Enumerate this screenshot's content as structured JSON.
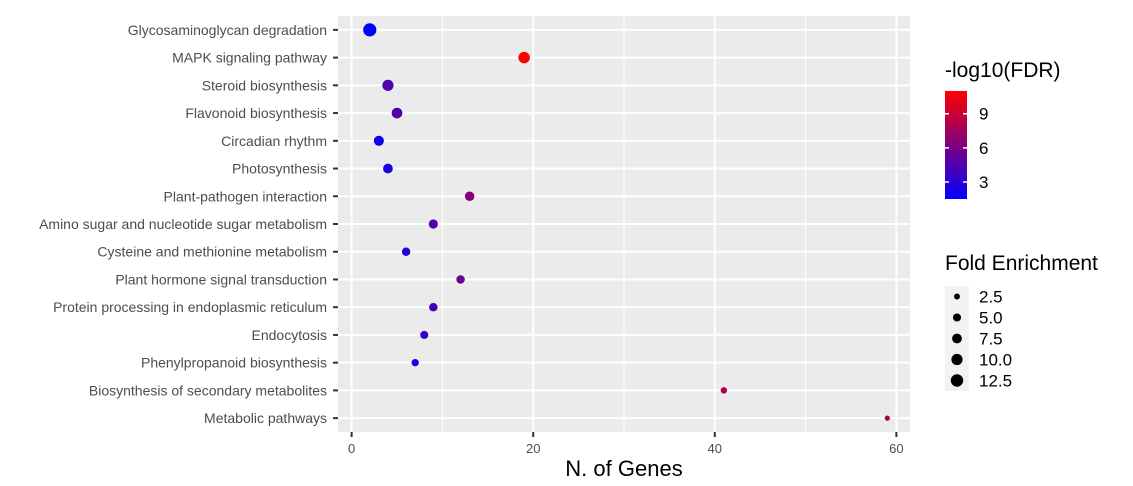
{
  "chart_data": {
    "type": "scatter",
    "title": "",
    "xlabel": "N. of Genes",
    "ylabel": "",
    "xlim": [
      -1.5,
      61.5
    ],
    "xticks": [
      0,
      20,
      40,
      60
    ],
    "grid": true,
    "categories": [
      "Glycosaminoglycan degradation",
      "MAPK signaling pathway",
      "Steroid biosynthesis",
      "Flavonoid biosynthesis",
      "Circadian rhythm",
      "Photosynthesis",
      "Plant-pathogen interaction",
      "Amino sugar and nucleotide sugar metabolism",
      "Cysteine and methionine metabolism",
      "Plant hormone signal transduction",
      "Protein processing in endoplasmic reticulum",
      "Endocytosis",
      "Phenylpropanoid biosynthesis",
      "Biosynthesis of secondary metabolites",
      "Metabolic pathways"
    ],
    "points": [
      {
        "pathway": "Glycosaminoglycan degradation",
        "genes": 2,
        "neg_log10_fdr": 1.5,
        "fold_enrichment": 14
      },
      {
        "pathway": "MAPK signaling pathway",
        "genes": 19,
        "neg_log10_fdr": 11,
        "fold_enrichment": 10.5
      },
      {
        "pathway": "Steroid biosynthesis",
        "genes": 4,
        "neg_log10_fdr": 4.5,
        "fold_enrichment": 10
      },
      {
        "pathway": "Flavonoid biosynthesis",
        "genes": 5,
        "neg_log10_fdr": 4.5,
        "fold_enrichment": 9
      },
      {
        "pathway": "Circadian rhythm",
        "genes": 3,
        "neg_log10_fdr": 2,
        "fold_enrichment": 8
      },
      {
        "pathway": "Photosynthesis",
        "genes": 4,
        "neg_log10_fdr": 2.5,
        "fold_enrichment": 7.5
      },
      {
        "pathway": "Plant-pathogen interaction",
        "genes": 13,
        "neg_log10_fdr": 6.5,
        "fold_enrichment": 7
      },
      {
        "pathway": "Amino sugar and nucleotide sugar metabolism",
        "genes": 9,
        "neg_log10_fdr": 4.5,
        "fold_enrichment": 6.5
      },
      {
        "pathway": "Cysteine and methionine metabolism",
        "genes": 6,
        "neg_log10_fdr": 3,
        "fold_enrichment": 5.5
      },
      {
        "pathway": "Plant hormone signal transduction",
        "genes": 12,
        "neg_log10_fdr": 5.5,
        "fold_enrichment": 5.5
      },
      {
        "pathway": "Protein processing in endoplasmic reticulum",
        "genes": 9,
        "neg_log10_fdr": 4,
        "fold_enrichment": 5.5
      },
      {
        "pathway": "Endocytosis",
        "genes": 8,
        "neg_log10_fdr": 3.5,
        "fold_enrichment": 5
      },
      {
        "pathway": "Phenylpropanoid biosynthesis",
        "genes": 7,
        "neg_log10_fdr": 2.5,
        "fold_enrichment": 4
      },
      {
        "pathway": "Biosynthesis of secondary metabolites",
        "genes": 41,
        "neg_log10_fdr": 8,
        "fold_enrichment": 3
      },
      {
        "pathway": "Metabolic pathways",
        "genes": 59,
        "neg_log10_fdr": 8,
        "fold_enrichment": 1.8
      }
    ],
    "color_legend": {
      "title": "-log10(FDR)",
      "breaks": [
        3,
        6,
        9
      ],
      "labels": [
        "3",
        "6",
        "9"
      ],
      "range": [
        1.5,
        11
      ],
      "low_color": "#0000ff",
      "high_color": "#ff0000"
    },
    "size_legend": {
      "title": "Fold Enrichment",
      "breaks": [
        2.5,
        5.0,
        7.5,
        10.0,
        12.5
      ],
      "labels": [
        "2.5",
        "5.0",
        "7.5",
        "10.0",
        "12.5"
      ],
      "range": [
        1.8,
        14
      ]
    },
    "legend_position": "right"
  }
}
